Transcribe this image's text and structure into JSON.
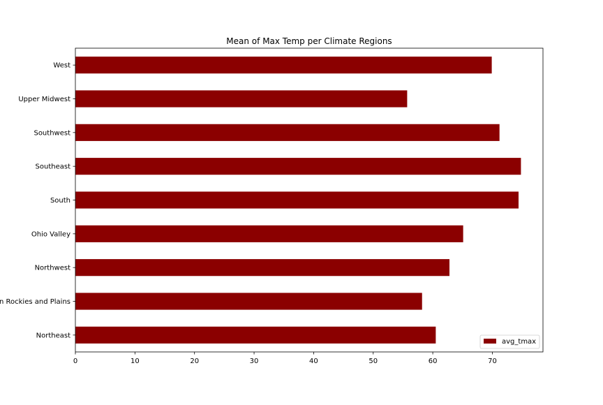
{
  "chart_data": {
    "type": "bar",
    "orientation": "horizontal",
    "title": "Mean of Max Temp per Climate Regions",
    "xlabel": "",
    "ylabel": "",
    "xlim": [
      0,
      78.5
    ],
    "x_ticks": [
      "0",
      "10",
      "20",
      "30",
      "40",
      "50",
      "60",
      "70"
    ],
    "x_tick_values": [
      0,
      10,
      20,
      30,
      40,
      50,
      60,
      70
    ],
    "categories": [
      "Northeast",
      "Northern Rockies and Plains",
      "Northwest",
      "Ohio Valley",
      "South",
      "Southeast",
      "Southwest",
      "Upper Midwest",
      "West"
    ],
    "series": [
      {
        "name": "avg_tmax",
        "color": "#8b0000",
        "values": [
          60.5,
          58.2,
          62.8,
          65.1,
          74.4,
          74.8,
          71.2,
          55.7,
          69.9
        ]
      }
    ],
    "legend": {
      "position": "lower-right",
      "entries": [
        "avg_tmax"
      ]
    },
    "grid": false
  }
}
